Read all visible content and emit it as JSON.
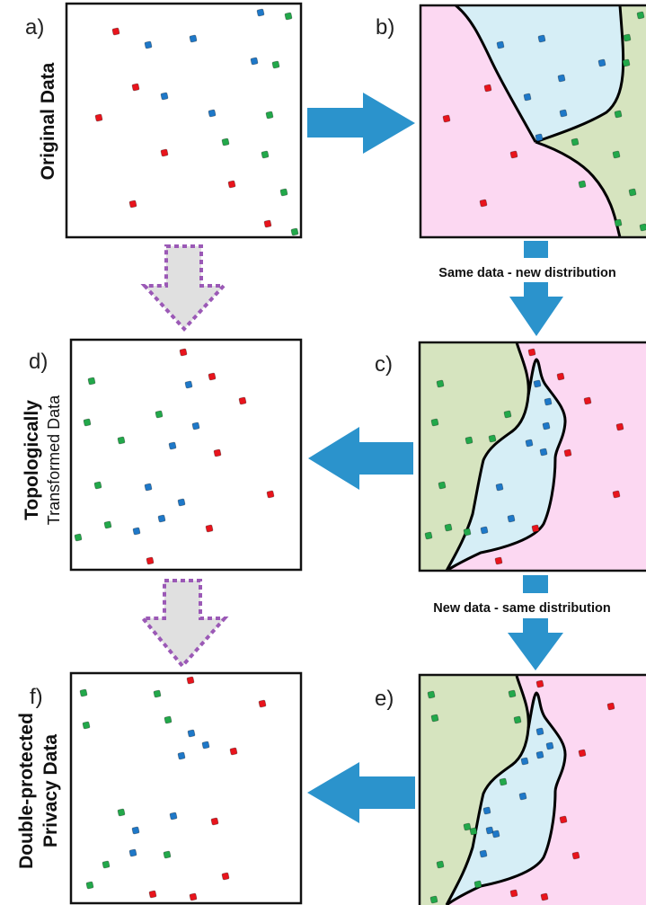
{
  "colors": {
    "red": "#e8141c",
    "blue": "#1e78c8",
    "green": "#22a84a",
    "region_pink": "#fcd8f2",
    "region_blue": "#d6eef6",
    "region_green": "#d6e4bf",
    "arrow_blue": "#2b93cc",
    "dotted_arrow_fill": "#e0e0e0",
    "dotted_arrow_border": "#9b59b6"
  },
  "panels": {
    "a": {
      "label": "a)"
    },
    "b": {
      "label": "b)"
    },
    "c": {
      "label": "c)"
    },
    "d": {
      "label": "d)"
    },
    "e": {
      "label": "e)"
    },
    "f": {
      "label": "f)"
    }
  },
  "side_labels": {
    "row1": [
      "Original Data"
    ],
    "row2": [
      "Topologically",
      "Transformed Data"
    ],
    "row3": [
      "Double-protected",
      "Privacy Data"
    ]
  },
  "captions": {
    "b_to_c": "Same data - new distribution",
    "c_to_e": "New data - same distribution"
  },
  "icons": {
    "right_arrow": "right-arrow-icon",
    "down_arrow": "down-arrow-icon",
    "left_arrow": "left-arrow-icon",
    "dotted_down_arrow": "dotted-down-arrow-icon"
  }
}
